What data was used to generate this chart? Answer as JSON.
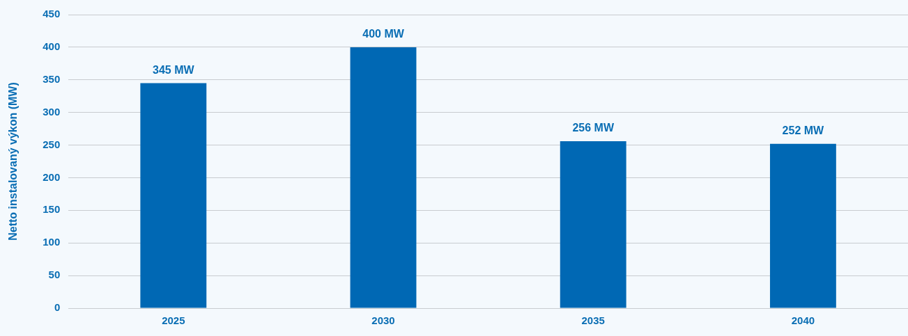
{
  "chart_data": {
    "type": "bar",
    "ylabel": "Netto instalovaný výkon (MW)",
    "categories": [
      "2025",
      "2030",
      "2035",
      "2040"
    ],
    "values": [
      345,
      400,
      256,
      252
    ],
    "value_labels": [
      "345 MW",
      "400 MW",
      "256 MW",
      "252 MW"
    ],
    "color": "#0068b4",
    "ylim": [
      0,
      450
    ],
    "yticks": [
      0,
      50,
      100,
      150,
      200,
      250,
      300,
      350,
      400,
      450
    ],
    "grid": "y",
    "legend": false
  }
}
